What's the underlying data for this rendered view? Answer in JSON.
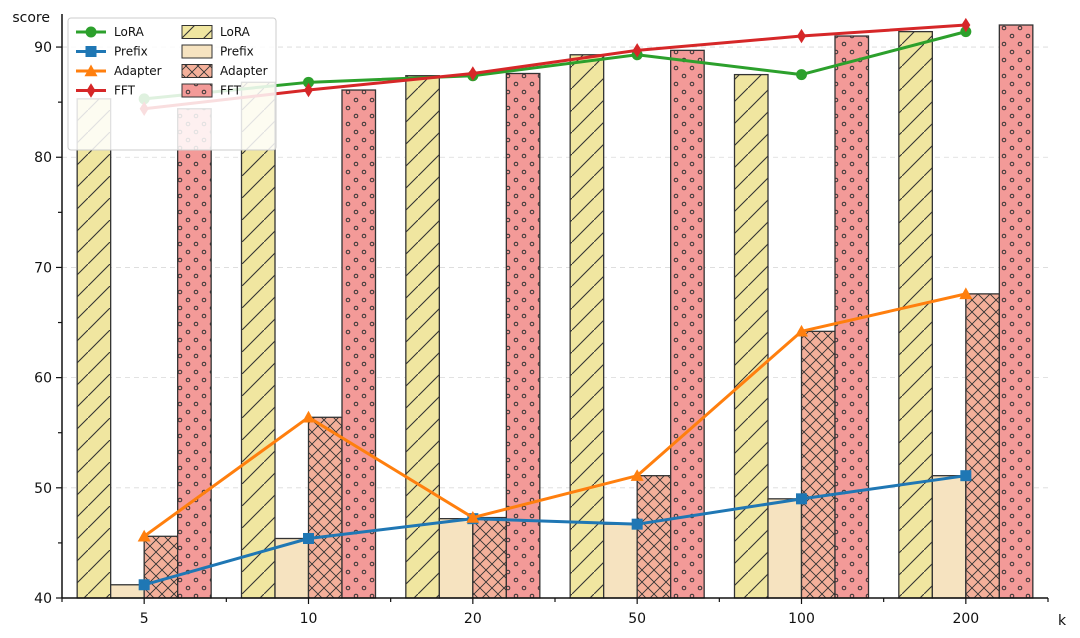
{
  "chart_data": {
    "type": "bar",
    "title": "",
    "xlabel": "k",
    "ylabel": "score",
    "categories": [
      "5",
      "10",
      "20",
      "50",
      "100",
      "200"
    ],
    "ylim": [
      40,
      93
    ],
    "yticks": [
      40,
      50,
      60,
      70,
      80,
      90
    ],
    "grid": true,
    "legend_position": "top-left",
    "bar_series": [
      {
        "name": "LoRA",
        "values": [
          85.3,
          86.8,
          87.4,
          89.3,
          87.5,
          91.4
        ],
        "color": "#f0e6a0",
        "pattern": "diagonal"
      },
      {
        "name": "Prefix",
        "values": [
          41.2,
          45.4,
          47.2,
          46.7,
          49.0,
          51.1
        ],
        "color": "#f6e3c0",
        "pattern": "none"
      },
      {
        "name": "Adapter",
        "values": [
          45.6,
          56.4,
          47.3,
          51.1,
          64.2,
          67.6
        ],
        "color": "#f4b09a",
        "pattern": "crosshatch"
      },
      {
        "name": "FFT",
        "values": [
          84.4,
          86.1,
          87.6,
          89.7,
          91.0,
          92.0
        ],
        "color": "#f39a98",
        "pattern": "dots"
      }
    ],
    "line_series": [
      {
        "name": "LoRA",
        "values": [
          85.3,
          86.8,
          87.4,
          89.3,
          87.5,
          91.4
        ],
        "color": "#2ca02c",
        "marker": "circle"
      },
      {
        "name": "Prefix",
        "values": [
          41.2,
          45.4,
          47.2,
          46.7,
          49.0,
          51.1
        ],
        "color": "#1f77b4",
        "marker": "square"
      },
      {
        "name": "Adapter",
        "values": [
          45.6,
          56.4,
          47.3,
          51.1,
          64.2,
          67.6
        ],
        "color": "#ff7f0e",
        "marker": "triangle"
      },
      {
        "name": "FFT",
        "values": [
          84.4,
          86.1,
          87.6,
          89.7,
          91.0,
          92.0
        ],
        "color": "#d62728",
        "marker": "diamond"
      }
    ]
  }
}
